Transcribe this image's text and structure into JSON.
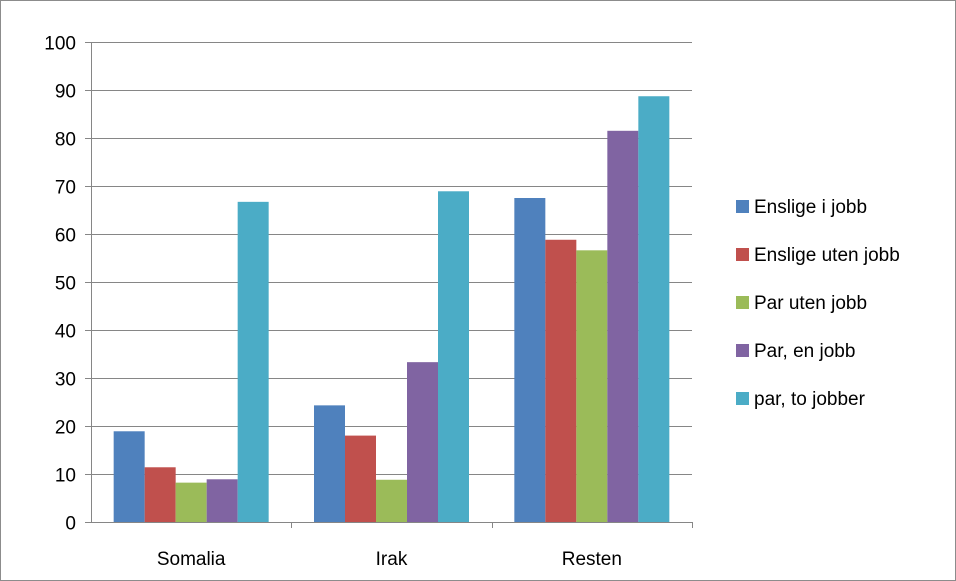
{
  "chart_data": {
    "type": "bar",
    "categories": [
      "Somalia",
      "Irak",
      "Resten"
    ],
    "series": [
      {
        "name": "Enslige i jobb",
        "color": "#4f81bd",
        "values": [
          18.9,
          24.3,
          67.5
        ]
      },
      {
        "name": "Enslige uten jobb",
        "color": "#c0504d",
        "values": [
          11.4,
          18.0,
          58.8
        ]
      },
      {
        "name": "Par uten jobb",
        "color": "#9bbb59",
        "values": [
          8.2,
          8.8,
          56.6
        ]
      },
      {
        "name": "Par, en jobb",
        "color": "#8064a2",
        "values": [
          8.9,
          33.3,
          81.5
        ]
      },
      {
        "name": "par, to jobber",
        "color": "#4bacc6",
        "values": [
          66.7,
          68.9,
          88.7
        ]
      }
    ],
    "ylim": [
      0,
      100
    ],
    "yticks": [
      "0",
      "10",
      "20",
      "30",
      "40",
      "50",
      "60",
      "70",
      "80",
      "90",
      "100"
    ],
    "grid": true,
    "legend": "right",
    "title": "",
    "xlabel": "",
    "ylabel": ""
  }
}
